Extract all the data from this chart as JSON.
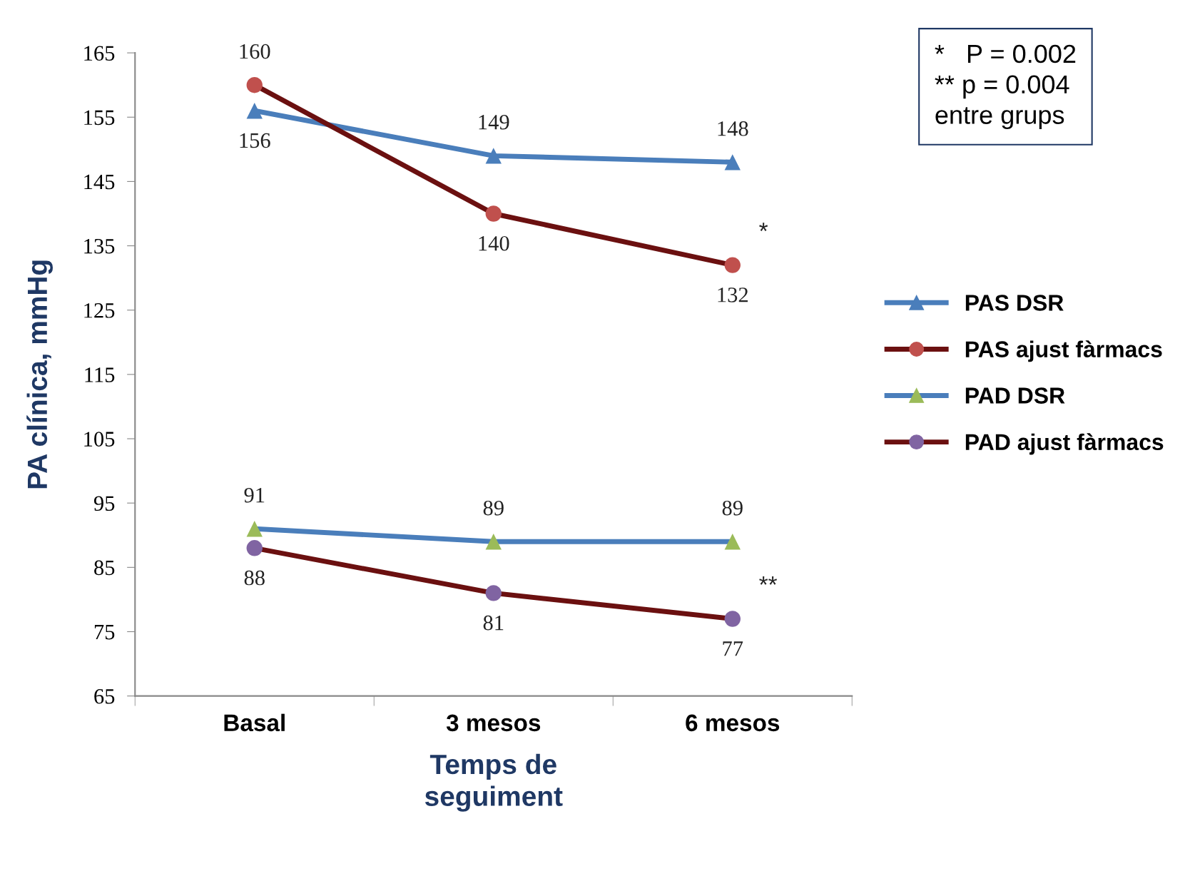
{
  "chart_data": {
    "type": "line",
    "xlabel": "Temps de\nseguiment",
    "ylabel": "PA clínica, mmHg",
    "categories": [
      "Basal",
      "3 mesos",
      "6 mesos"
    ],
    "series": [
      {
        "name": "PAS DSR",
        "color": "#4a7ebb",
        "colors": [
          "#4a7ebb",
          "#4a7ebb",
          "#4a7ebb"
        ],
        "marker": "triangle",
        "values": [
          156,
          149,
          148
        ]
      },
      {
        "name": "PAS ajust fàrmacs",
        "color": "#6b1010",
        "colors": [
          "#c0504d",
          "#c0504d",
          "#c0504d"
        ],
        "marker": "circle",
        "values": [
          160,
          140,
          132
        ]
      },
      {
        "name": "PAD DSR",
        "color": "#4a7ebb",
        "colors": [
          "#9bbb59",
          "#9bbb59",
          "#9bbb59"
        ],
        "marker": "triangle",
        "values": [
          91,
          89,
          89
        ]
      },
      {
        "name": "PAD ajust fàrmacs",
        "color": "#6b1010",
        "colors": [
          "#8064a2",
          "#8064a2",
          "#8064a2"
        ],
        "marker": "circle",
        "values": [
          88,
          81,
          77
        ]
      }
    ],
    "ylim": [
      65,
      165
    ],
    "yticks": [
      65,
      75,
      85,
      95,
      105,
      115,
      125,
      135,
      145,
      155,
      165
    ],
    "data_labels": true,
    "grid": false,
    "legend": "right",
    "annotations": [
      "*",
      "**",
      "*   P = 0.002\n** p = 0.004\nentre grups"
    ]
  }
}
